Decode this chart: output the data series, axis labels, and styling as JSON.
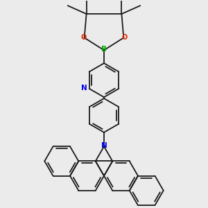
{
  "background_color": "#ebebeb",
  "bond_color": "#1a1a1a",
  "atom_colors": {
    "B": "#00aa00",
    "O": "#dd2200",
    "N_pyridine": "#0000ee",
    "N_carbazole": "#0000ee"
  },
  "figsize": [
    3.0,
    3.0
  ],
  "dpi": 100
}
